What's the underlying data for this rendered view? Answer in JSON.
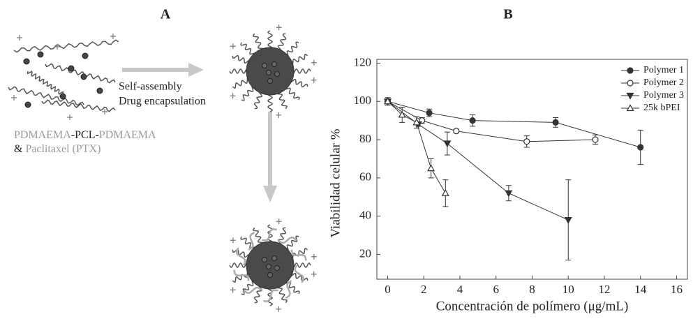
{
  "figure": {
    "panel_a": {
      "label": "A",
      "arrow_text": [
        "Self-assembly",
        "Drug encapsulation"
      ],
      "caption": {
        "line1": [
          "PDMAEMA",
          "-PCL-",
          "PDMAEMA"
        ],
        "line2": [
          "&",
          "Paclitaxel (PTX)"
        ]
      }
    }
  },
  "chart_data": {
    "type": "line",
    "title": "B",
    "x_label": "Concentración de polímero (μg/mL)",
    "y_label": "Viabilidad celular %",
    "xlim": [
      -0.6,
      16.6
    ],
    "ylim": [
      7,
      122
    ],
    "xticks": [
      0,
      2,
      4,
      6,
      8,
      10,
      12,
      14,
      16
    ],
    "yticks": [
      20,
      40,
      60,
      80,
      100,
      120
    ],
    "grid": false,
    "legend": "upper right",
    "series": [
      {
        "name": "Polymer 1",
        "color": "#333333",
        "marker": "circle",
        "filled": true,
        "x": [
          0,
          2.3,
          4.7,
          9.3,
          14
        ],
        "values": [
          100,
          94,
          90,
          89,
          76
        ],
        "errors": [
          2,
          2,
          3,
          2.5,
          9
        ]
      },
      {
        "name": "Polymer 2",
        "color": "#333333",
        "marker": "circle",
        "filled": false,
        "x": [
          0,
          1.9,
          3.8,
          7.7,
          11.5
        ],
        "values": [
          100,
          90,
          84.5,
          79,
          80
        ],
        "errors": [
          1,
          1.5,
          1,
          3,
          2.5
        ]
      },
      {
        "name": "Polymer 3",
        "color": "#333333",
        "marker": "triangle-down",
        "filled": true,
        "x": [
          0,
          1.7,
          3.3,
          6.7,
          10
        ],
        "values": [
          100,
          88,
          78,
          52,
          38
        ],
        "errors": [
          1,
          1,
          6,
          4,
          21
        ]
      },
      {
        "name": "25k bPEI",
        "color": "#333333",
        "marker": "triangle-up",
        "filled": false,
        "x": [
          0,
          0.8,
          1.6,
          2.4,
          3.2
        ],
        "values": [
          100,
          93,
          89,
          65,
          52
        ],
        "errors": [
          1,
          4,
          3,
          5,
          7
        ]
      }
    ]
  }
}
